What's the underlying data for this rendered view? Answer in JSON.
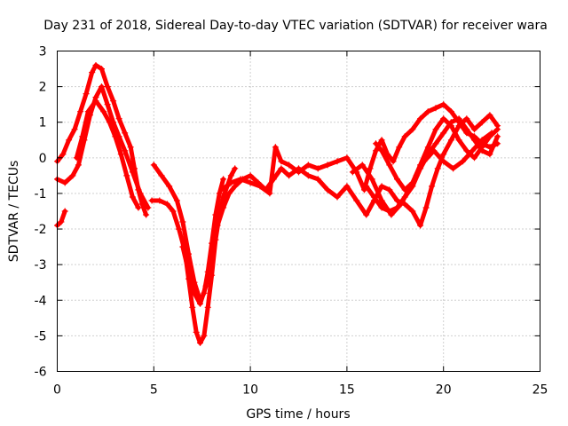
{
  "chart_data": {
    "type": "scatter",
    "title": "Day 231 of 2018, Sidereal Day-to-day VTEC variation (SDTVAR) for receiver wara",
    "xlabel": "GPS time / hours",
    "ylabel": "SDTVAR / TECUs",
    "xlim": [
      0,
      25
    ],
    "ylim": [
      -6,
      3
    ],
    "xticks": [
      "0",
      "5",
      "10",
      "15",
      "20",
      "25"
    ],
    "yticks": [
      "-6",
      "-5",
      "-4",
      "-3",
      "-2",
      "-1",
      "0",
      "1",
      "2",
      "3"
    ],
    "grid": true,
    "marker": "+",
    "color": "#ff0000",
    "series": [
      {
        "points": [
          [
            0.0,
            -0.1
          ],
          [
            0.3,
            0.1
          ],
          [
            0.6,
            0.5
          ],
          [
            0.9,
            0.8
          ],
          [
            1.2,
            1.3
          ],
          [
            1.5,
            1.8
          ],
          [
            1.8,
            2.4
          ],
          [
            2.0,
            2.6
          ],
          [
            2.3,
            2.5
          ],
          [
            2.6,
            2.0
          ],
          [
            2.9,
            1.6
          ],
          [
            3.2,
            1.1
          ],
          [
            3.5,
            0.7
          ],
          [
            3.8,
            0.3
          ],
          [
            4.0,
            -0.3
          ],
          [
            4.2,
            -0.9
          ],
          [
            4.4,
            -1.3
          ],
          [
            4.6,
            -1.6
          ]
        ]
      },
      {
        "points": [
          [
            0.0,
            -0.6
          ],
          [
            0.4,
            -0.7
          ],
          [
            0.8,
            -0.5
          ],
          [
            1.1,
            -0.2
          ],
          [
            1.4,
            0.5
          ],
          [
            1.7,
            1.2
          ],
          [
            2.0,
            1.7
          ],
          [
            2.3,
            2.0
          ],
          [
            2.6,
            1.5
          ],
          [
            2.9,
            1.0
          ],
          [
            3.2,
            0.6
          ],
          [
            3.5,
            0.2
          ],
          [
            3.9,
            -0.4
          ],
          [
            4.3,
            -1.0
          ],
          [
            4.7,
            -1.4
          ]
        ]
      },
      {
        "points": [
          [
            0.0,
            -1.9
          ],
          [
            0.2,
            -1.8
          ],
          [
            0.4,
            -1.5
          ]
        ]
      },
      {
        "points": [
          [
            1.0,
            0.0
          ],
          [
            1.3,
            0.6
          ],
          [
            1.6,
            1.3
          ],
          [
            2.0,
            1.6
          ],
          [
            2.4,
            1.3
          ],
          [
            2.7,
            1.0
          ],
          [
            3.0,
            0.6
          ],
          [
            3.3,
            0.1
          ],
          [
            3.6,
            -0.5
          ],
          [
            3.9,
            -1.1
          ],
          [
            4.2,
            -1.4
          ]
        ]
      },
      {
        "points": [
          [
            4.9,
            -1.2
          ],
          [
            5.3,
            -1.2
          ],
          [
            5.7,
            -1.3
          ],
          [
            6.0,
            -1.5
          ],
          [
            6.3,
            -2.0
          ],
          [
            6.6,
            -2.6
          ],
          [
            6.8,
            -3.4
          ],
          [
            7.0,
            -4.2
          ],
          [
            7.2,
            -4.9
          ],
          [
            7.4,
            -5.2
          ],
          [
            7.6,
            -5.0
          ],
          [
            7.8,
            -4.2
          ],
          [
            8.0,
            -3.3
          ],
          [
            8.2,
            -2.3
          ],
          [
            8.4,
            -1.6
          ],
          [
            8.6,
            -1.1
          ],
          [
            8.8,
            -0.8
          ],
          [
            9.0,
            -0.5
          ],
          [
            9.2,
            -0.3
          ]
        ]
      },
      {
        "points": [
          [
            5.0,
            -0.2
          ],
          [
            5.4,
            -0.5
          ],
          [
            5.8,
            -0.8
          ],
          [
            6.2,
            -1.2
          ],
          [
            6.5,
            -1.8
          ],
          [
            6.8,
            -2.7
          ],
          [
            7.1,
            -3.5
          ],
          [
            7.4,
            -4.0
          ],
          [
            7.6,
            -3.8
          ],
          [
            7.8,
            -3.2
          ],
          [
            8.0,
            -2.4
          ],
          [
            8.2,
            -1.6
          ],
          [
            8.4,
            -1.0
          ],
          [
            8.6,
            -0.6
          ]
        ]
      },
      {
        "points": [
          [
            6.5,
            -2.5
          ],
          [
            6.8,
            -3.2
          ],
          [
            7.1,
            -3.8
          ],
          [
            7.4,
            -4.1
          ],
          [
            7.7,
            -3.6
          ],
          [
            8.0,
            -2.7
          ],
          [
            8.3,
            -1.9
          ],
          [
            8.6,
            -1.4
          ],
          [
            8.9,
            -1.0
          ],
          [
            9.2,
            -0.8
          ],
          [
            9.6,
            -0.6
          ],
          [
            10.0,
            -0.5
          ],
          [
            10.4,
            -0.7
          ],
          [
            10.8,
            -0.9
          ],
          [
            11.2,
            -0.6
          ],
          [
            11.6,
            -0.3
          ],
          [
            12.0,
            -0.5
          ],
          [
            12.5,
            -0.3
          ],
          [
            13.0,
            -0.5
          ],
          [
            13.5,
            -0.6
          ],
          [
            14.0,
            -0.9
          ],
          [
            14.5,
            -1.1
          ],
          [
            15.0,
            -0.8
          ],
          [
            15.5,
            -1.2
          ],
          [
            16.0,
            -1.6
          ],
          [
            16.4,
            -1.2
          ],
          [
            16.8,
            -0.8
          ],
          [
            17.2,
            -0.9
          ],
          [
            17.6,
            -1.2
          ],
          [
            18.0,
            -1.3
          ],
          [
            18.4,
            -1.5
          ],
          [
            18.8,
            -1.9
          ],
          [
            19.1,
            -1.4
          ],
          [
            19.4,
            -0.8
          ],
          [
            19.7,
            -0.3
          ],
          [
            20.0,
            0.1
          ],
          [
            20.4,
            0.5
          ],
          [
            20.8,
            0.9
          ],
          [
            21.2,
            1.1
          ],
          [
            21.6,
            0.8
          ],
          [
            22.0,
            1.0
          ],
          [
            22.4,
            1.2
          ],
          [
            22.8,
            0.9
          ]
        ]
      },
      {
        "points": [
          [
            8.5,
            -0.9
          ],
          [
            9.0,
            -0.7
          ],
          [
            9.5,
            -0.6
          ],
          [
            10.0,
            -0.7
          ],
          [
            10.5,
            -0.8
          ],
          [
            11.0,
            -1.0
          ],
          [
            11.3,
            0.3
          ],
          [
            11.6,
            -0.1
          ],
          [
            12.0,
            -0.2
          ],
          [
            12.5,
            -0.4
          ],
          [
            13.0,
            -0.2
          ],
          [
            13.5,
            -0.3
          ],
          [
            14.0,
            -0.2
          ],
          [
            14.5,
            -0.1
          ],
          [
            15.0,
            0.0
          ],
          [
            15.5,
            -0.4
          ],
          [
            15.9,
            -0.9
          ],
          [
            16.2,
            -0.3
          ],
          [
            16.5,
            0.2
          ],
          [
            16.8,
            0.5
          ],
          [
            17.1,
            0.1
          ],
          [
            17.4,
            -0.1
          ],
          [
            17.7,
            0.3
          ],
          [
            18.0,
            0.6
          ],
          [
            18.4,
            0.8
          ],
          [
            18.8,
            1.1
          ],
          [
            19.2,
            1.3
          ],
          [
            19.6,
            1.4
          ],
          [
            20.0,
            1.5
          ],
          [
            20.4,
            1.3
          ],
          [
            20.8,
            1.0
          ],
          [
            21.2,
            0.7
          ],
          [
            21.6,
            0.6
          ],
          [
            22.0,
            0.4
          ],
          [
            22.4,
            0.3
          ],
          [
            22.8,
            0.4
          ]
        ]
      },
      {
        "points": [
          [
            16.0,
            -0.8
          ],
          [
            16.4,
            -1.1
          ],
          [
            16.8,
            -1.4
          ],
          [
            17.2,
            -1.5
          ],
          [
            17.6,
            -1.4
          ],
          [
            18.0,
            -1.1
          ],
          [
            18.4,
            -0.8
          ],
          [
            18.8,
            -0.3
          ],
          [
            19.2,
            0.1
          ],
          [
            19.6,
            0.4
          ],
          [
            20.0,
            0.7
          ],
          [
            20.4,
            1.0
          ],
          [
            20.8,
            1.1
          ],
          [
            21.2,
            0.8
          ],
          [
            21.6,
            0.5
          ],
          [
            22.0,
            0.2
          ],
          [
            22.4,
            0.1
          ],
          [
            22.8,
            0.6
          ]
        ]
      },
      {
        "points": [
          [
            16.5,
            0.4
          ],
          [
            16.8,
            0.2
          ],
          [
            17.2,
            -0.2
          ],
          [
            17.6,
            -0.6
          ],
          [
            18.0,
            -0.9
          ],
          [
            18.4,
            -0.7
          ],
          [
            18.8,
            -0.2
          ],
          [
            19.2,
            0.3
          ],
          [
            19.6,
            0.8
          ],
          [
            20.0,
            1.1
          ],
          [
            20.4,
            0.9
          ],
          [
            20.8,
            0.5
          ],
          [
            21.2,
            0.2
          ],
          [
            21.6,
            0.0
          ],
          [
            22.0,
            0.3
          ],
          [
            22.4,
            0.6
          ],
          [
            22.8,
            0.8
          ]
        ]
      },
      {
        "points": [
          [
            15.3,
            -0.4
          ],
          [
            15.8,
            -0.2
          ],
          [
            16.3,
            -0.6
          ],
          [
            16.8,
            -1.2
          ],
          [
            17.3,
            -1.6
          ],
          [
            17.8,
            -1.3
          ],
          [
            18.2,
            -0.9
          ],
          [
            18.6,
            -0.5
          ],
          [
            19.0,
            -0.1
          ],
          [
            19.5,
            0.2
          ],
          [
            20.0,
            -0.1
          ],
          [
            20.5,
            -0.3
          ],
          [
            21.0,
            -0.1
          ],
          [
            21.5,
            0.2
          ],
          [
            22.0,
            0.5
          ],
          [
            22.5,
            0.7
          ]
        ]
      }
    ]
  }
}
